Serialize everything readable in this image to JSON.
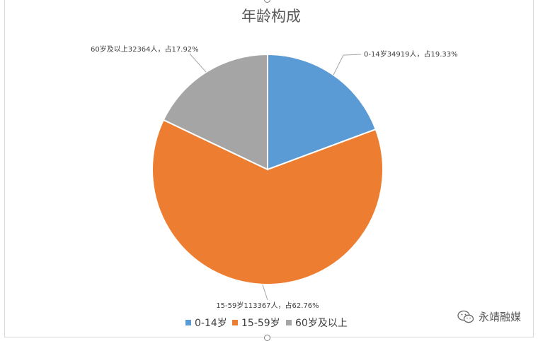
{
  "chart_data": {
    "type": "pie",
    "title": "年龄构成",
    "categories": [
      "0-14岁",
      "15-59岁",
      "60岁及以上"
    ],
    "values": [
      34919,
      113367,
      32364
    ],
    "percentages": [
      19.33,
      62.76,
      17.92
    ],
    "data_labels": [
      "0-14岁34919人，占19.33%",
      "15-59岁113367人，占62.76%",
      "60岁及以上32364人，占17.92%"
    ],
    "colors": [
      "#5b9bd5",
      "#ed7d31",
      "#a5a5a5"
    ],
    "legend": {
      "placement": "bottom",
      "entries": [
        "0-14岁",
        "15-59岁",
        "60岁及以上"
      ]
    }
  },
  "watermark": {
    "text": "永靖融媒",
    "icon": "wechat-icon"
  }
}
